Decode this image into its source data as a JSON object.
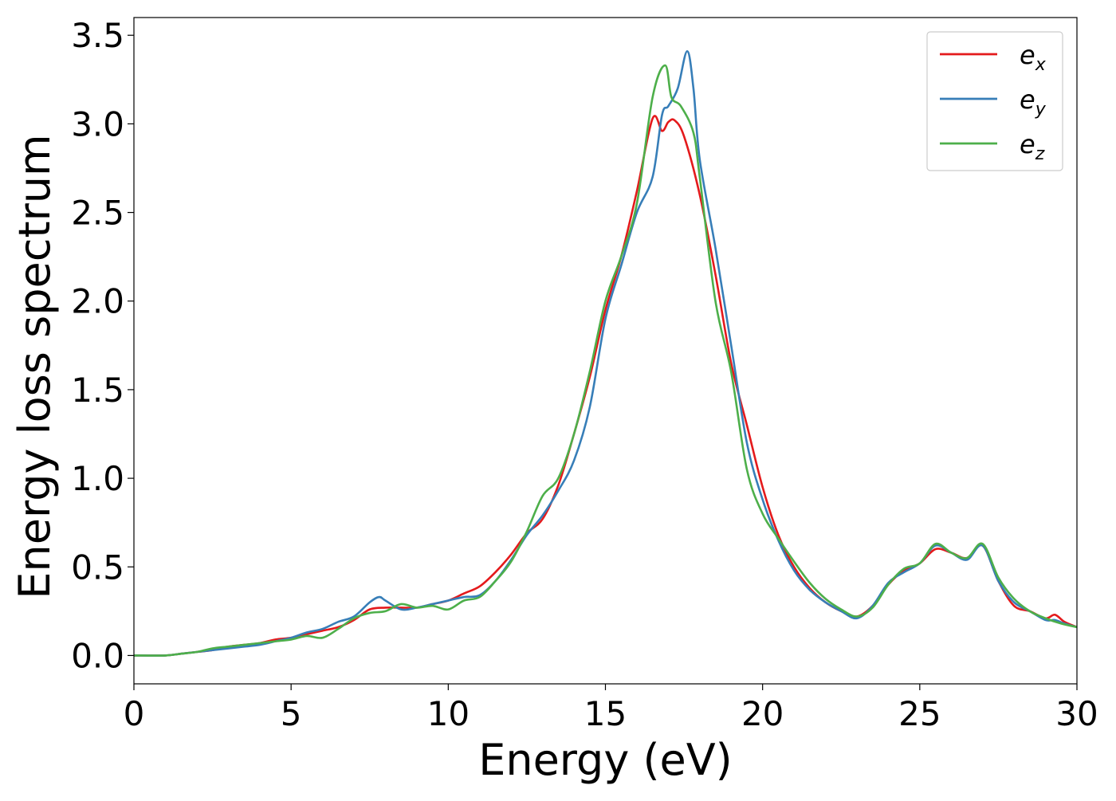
{
  "chart_data": {
    "type": "line",
    "title": "",
    "xlabel": "Energy (eV)",
    "ylabel": "Energy loss spectrum",
    "xlim": [
      0,
      30
    ],
    "ylim": [
      -0.16,
      3.6
    ],
    "xticks": [
      0,
      5,
      10,
      15,
      20,
      25,
      30
    ],
    "xtick_labels": [
      "0",
      "5",
      "10",
      "15",
      "20",
      "25",
      "30"
    ],
    "yticks": [
      0.0,
      0.5,
      1.0,
      1.5,
      2.0,
      2.5,
      3.0,
      3.5
    ],
    "ytick_labels": [
      "0.0",
      "0.5",
      "1.0",
      "1.5",
      "2.0",
      "2.5",
      "3.0",
      "3.5"
    ],
    "grid": false,
    "legend_position": "top-right",
    "series": [
      {
        "name": "e_x",
        "legend_base": "e",
        "legend_sub": "x",
        "color": "#e41a1c",
        "points": [
          [
            0,
            0.0
          ],
          [
            1,
            0.0
          ],
          [
            1.5,
            0.01
          ],
          [
            2,
            0.02
          ],
          [
            2.5,
            0.03
          ],
          [
            3,
            0.05
          ],
          [
            3.5,
            0.06
          ],
          [
            4,
            0.07
          ],
          [
            4.5,
            0.09
          ],
          [
            5,
            0.1
          ],
          [
            5.5,
            0.12
          ],
          [
            6,
            0.14
          ],
          [
            6.5,
            0.16
          ],
          [
            7,
            0.2
          ],
          [
            7.5,
            0.26
          ],
          [
            8,
            0.27
          ],
          [
            8.5,
            0.27
          ],
          [
            9,
            0.27
          ],
          [
            9.5,
            0.29
          ],
          [
            10,
            0.31
          ],
          [
            10.5,
            0.35
          ],
          [
            11,
            0.39
          ],
          [
            11.5,
            0.47
          ],
          [
            12,
            0.57
          ],
          [
            12.5,
            0.69
          ],
          [
            13,
            0.77
          ],
          [
            13.5,
            0.96
          ],
          [
            14,
            1.25
          ],
          [
            14.5,
            1.57
          ],
          [
            15,
            1.95
          ],
          [
            15.5,
            2.25
          ],
          [
            16,
            2.62
          ],
          [
            16.5,
            3.03
          ],
          [
            16.8,
            2.96
          ],
          [
            17,
            3.01
          ],
          [
            17.2,
            3.02
          ],
          [
            17.5,
            2.93
          ],
          [
            18,
            2.6
          ],
          [
            18.5,
            2.15
          ],
          [
            19,
            1.65
          ],
          [
            19.5,
            1.3
          ],
          [
            20,
            0.95
          ],
          [
            20.5,
            0.68
          ],
          [
            21,
            0.5
          ],
          [
            21.5,
            0.38
          ],
          [
            22,
            0.3
          ],
          [
            22.5,
            0.25
          ],
          [
            23,
            0.22
          ],
          [
            23.5,
            0.28
          ],
          [
            24,
            0.4
          ],
          [
            24.5,
            0.48
          ],
          [
            25,
            0.52
          ],
          [
            25.5,
            0.6
          ],
          [
            26,
            0.58
          ],
          [
            26.5,
            0.55
          ],
          [
            27,
            0.62
          ],
          [
            27.5,
            0.42
          ],
          [
            28,
            0.28
          ],
          [
            28.5,
            0.25
          ],
          [
            29,
            0.21
          ],
          [
            29.3,
            0.23
          ],
          [
            29.6,
            0.19
          ],
          [
            30,
            0.16
          ]
        ]
      },
      {
        "name": "e_y",
        "legend_base": "e",
        "legend_sub": "y",
        "color": "#377eb8",
        "points": [
          [
            0,
            0.0
          ],
          [
            1,
            0.0
          ],
          [
            1.5,
            0.01
          ],
          [
            2,
            0.02
          ],
          [
            2.5,
            0.03
          ],
          [
            3,
            0.04
          ],
          [
            3.5,
            0.05
          ],
          [
            4,
            0.06
          ],
          [
            4.5,
            0.08
          ],
          [
            5,
            0.1
          ],
          [
            5.5,
            0.13
          ],
          [
            6,
            0.15
          ],
          [
            6.5,
            0.19
          ],
          [
            7,
            0.22
          ],
          [
            7.5,
            0.3
          ],
          [
            7.8,
            0.33
          ],
          [
            8,
            0.31
          ],
          [
            8.5,
            0.26
          ],
          [
            9,
            0.27
          ],
          [
            9.5,
            0.29
          ],
          [
            10,
            0.31
          ],
          [
            10.5,
            0.33
          ],
          [
            11,
            0.34
          ],
          [
            11.5,
            0.42
          ],
          [
            12,
            0.54
          ],
          [
            12.5,
            0.68
          ],
          [
            13,
            0.79
          ],
          [
            13.5,
            0.93
          ],
          [
            14,
            1.1
          ],
          [
            14.5,
            1.4
          ],
          [
            15,
            1.9
          ],
          [
            15.5,
            2.2
          ],
          [
            16,
            2.5
          ],
          [
            16.5,
            2.7
          ],
          [
            16.8,
            3.05
          ],
          [
            17,
            3.1
          ],
          [
            17.3,
            3.2
          ],
          [
            17.6,
            3.41
          ],
          [
            17.8,
            3.2
          ],
          [
            18,
            2.8
          ],
          [
            18.5,
            2.3
          ],
          [
            19,
            1.75
          ],
          [
            19.5,
            1.2
          ],
          [
            20,
            0.88
          ],
          [
            20.5,
            0.65
          ],
          [
            21,
            0.48
          ],
          [
            21.5,
            0.37
          ],
          [
            22,
            0.3
          ],
          [
            22.5,
            0.25
          ],
          [
            23,
            0.21
          ],
          [
            23.5,
            0.28
          ],
          [
            24,
            0.41
          ],
          [
            24.5,
            0.47
          ],
          [
            25,
            0.52
          ],
          [
            25.5,
            0.62
          ],
          [
            26,
            0.58
          ],
          [
            26.5,
            0.54
          ],
          [
            27,
            0.62
          ],
          [
            27.5,
            0.42
          ],
          [
            28,
            0.3
          ],
          [
            28.5,
            0.25
          ],
          [
            29,
            0.2
          ],
          [
            29.3,
            0.2
          ],
          [
            29.6,
            0.18
          ],
          [
            30,
            0.16
          ]
        ]
      },
      {
        "name": "e_z",
        "legend_base": "e",
        "legend_sub": "z",
        "color": "#4daf4a",
        "points": [
          [
            0,
            0.0
          ],
          [
            1,
            0.0
          ],
          [
            1.5,
            0.01
          ],
          [
            2,
            0.02
          ],
          [
            2.5,
            0.04
          ],
          [
            3,
            0.05
          ],
          [
            3.5,
            0.06
          ],
          [
            4,
            0.07
          ],
          [
            4.5,
            0.08
          ],
          [
            5,
            0.09
          ],
          [
            5.5,
            0.11
          ],
          [
            6,
            0.1
          ],
          [
            6.5,
            0.15
          ],
          [
            7,
            0.21
          ],
          [
            7.5,
            0.24
          ],
          [
            8,
            0.25
          ],
          [
            8.5,
            0.29
          ],
          [
            9,
            0.27
          ],
          [
            9.5,
            0.28
          ],
          [
            10,
            0.26
          ],
          [
            10.5,
            0.31
          ],
          [
            11,
            0.33
          ],
          [
            11.5,
            0.42
          ],
          [
            12,
            0.53
          ],
          [
            12.5,
            0.7
          ],
          [
            13,
            0.9
          ],
          [
            13.5,
            1.0
          ],
          [
            14,
            1.25
          ],
          [
            14.5,
            1.6
          ],
          [
            15,
            2.0
          ],
          [
            15.5,
            2.25
          ],
          [
            16,
            2.55
          ],
          [
            16.5,
            3.15
          ],
          [
            16.9,
            3.33
          ],
          [
            17.1,
            3.15
          ],
          [
            17.4,
            3.1
          ],
          [
            17.8,
            2.95
          ],
          [
            18,
            2.7
          ],
          [
            18.5,
            2.0
          ],
          [
            19,
            1.6
          ],
          [
            19.5,
            1.05
          ],
          [
            20,
            0.8
          ],
          [
            20.5,
            0.66
          ],
          [
            21,
            0.53
          ],
          [
            21.5,
            0.41
          ],
          [
            22,
            0.32
          ],
          [
            22.5,
            0.26
          ],
          [
            23,
            0.22
          ],
          [
            23.5,
            0.27
          ],
          [
            24,
            0.4
          ],
          [
            24.5,
            0.49
          ],
          [
            25,
            0.52
          ],
          [
            25.5,
            0.63
          ],
          [
            26,
            0.58
          ],
          [
            26.5,
            0.55
          ],
          [
            27,
            0.63
          ],
          [
            27.5,
            0.44
          ],
          [
            28,
            0.32
          ],
          [
            28.5,
            0.25
          ],
          [
            29,
            0.21
          ],
          [
            29.5,
            0.18
          ],
          [
            30,
            0.16
          ]
        ]
      }
    ]
  }
}
